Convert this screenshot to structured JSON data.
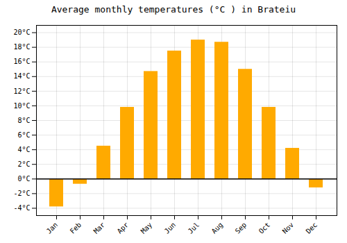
{
  "chart_data": {
    "type": "bar",
    "title": "Average monthly temperatures (°C ) in Brateiu",
    "categories": [
      "Jan",
      "Feb",
      "Mar",
      "Apr",
      "May",
      "Jun",
      "Jul",
      "Aug",
      "Sep",
      "Oct",
      "Nov",
      "Dec"
    ],
    "values": [
      -3.8,
      -0.7,
      4.5,
      9.8,
      14.7,
      17.5,
      19.0,
      18.7,
      15.0,
      9.8,
      4.2,
      -1.2
    ],
    "color": "#FFAA00",
    "ylim": [
      -5,
      21
    ],
    "yticks": [
      {
        "value": -4,
        "label": "-4°C"
      },
      {
        "value": -2,
        "label": "-2°C"
      },
      {
        "value": 0,
        "label": "0°C"
      },
      {
        "value": 2,
        "label": "2°C"
      },
      {
        "value": 4,
        "label": "4°C"
      },
      {
        "value": 6,
        "label": "6°C"
      },
      {
        "value": 8,
        "label": "8°C"
      },
      {
        "value": 10,
        "label": "10°C"
      },
      {
        "value": 12,
        "label": "12°C"
      },
      {
        "value": 14,
        "label": "14°C"
      },
      {
        "value": 16,
        "label": "16°C"
      },
      {
        "value": 18,
        "label": "18°C"
      },
      {
        "value": 20,
        "label": "20°C"
      }
    ],
    "grid": true
  }
}
